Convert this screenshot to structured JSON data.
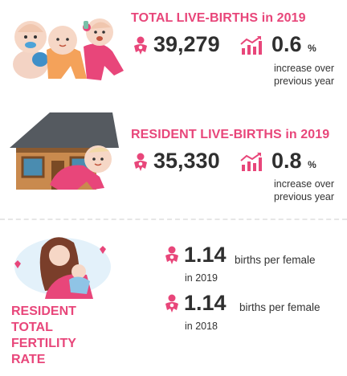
{
  "sections": {
    "total": {
      "title": "TOTAL LIVE-BIRTHS in 2019",
      "count": "39,279",
      "pct": "0.6",
      "pct_unit": "%",
      "note_line1": "increase over",
      "note_line2": "previous year"
    },
    "resident": {
      "title": "RESIDENT LIVE-BIRTHS in 2019",
      "count": "35,330",
      "pct": "0.8",
      "pct_unit": "%",
      "note_line1": "increase over",
      "note_line2": "previous year"
    },
    "tfr": {
      "title_line1": "RESIDENT",
      "title_line2": "TOTAL",
      "title_line3": "FERTILITY",
      "title_line4": "RATE",
      "rows": [
        {
          "value": "1.14",
          "unit": "births per female",
          "year": "in 2019"
        },
        {
          "value": "1.14",
          "unit": "births per female",
          "year": "in 2018"
        }
      ]
    }
  },
  "colors": {
    "accent": "#e8467a",
    "text": "#2f2f2f"
  },
  "icons": [
    "babies-illustration",
    "baby-icon",
    "growth-chart-icon",
    "house-baby-illustration",
    "mother-baby-illustration"
  ]
}
